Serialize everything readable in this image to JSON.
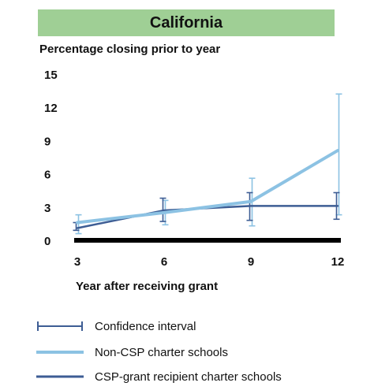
{
  "colors": {
    "banner_bg": "#9fcf95",
    "non_csp": "#8cc2e3",
    "csp": "#3d5d94",
    "ci_non_csp": "#8cc2e3",
    "ci_csp": "#3d5d94",
    "axis": "#000000"
  },
  "legend": {
    "ci": "Confidence interval",
    "non_csp": "Non-CSP charter schools",
    "csp": "CSP-grant recipient charter schools"
  },
  "chart_data": {
    "type": "line",
    "title": "California",
    "ylabel": "Percentage closing prior to year",
    "xlabel": "Year after receiving grant",
    "x": [
      3,
      6,
      9,
      12
    ],
    "xticks": [
      "3",
      "6",
      "9",
      "12"
    ],
    "yticks": [
      "0",
      "3",
      "6",
      "9",
      "12",
      "15"
    ],
    "ylim": [
      0,
      15
    ],
    "grid": false,
    "legend_position": "bottom",
    "series": [
      {
        "name": "Non-CSP charter schools",
        "color": "#8cc2e3",
        "values": [
          1.6,
          2.5,
          3.5,
          8.1
        ],
        "ci_low": [
          0.6,
          1.4,
          1.3,
          2.3
        ],
        "ci_high": [
          2.3,
          3.6,
          5.6,
          13.2
        ]
      },
      {
        "name": "CSP-grant recipient charter schools",
        "color": "#3d5d94",
        "values": [
          1.1,
          2.7,
          3.1,
          3.1
        ],
        "ci_low": [
          0.9,
          1.7,
          1.8,
          1.9
        ],
        "ci_high": [
          1.6,
          3.8,
          4.3,
          4.3
        ]
      }
    ]
  }
}
